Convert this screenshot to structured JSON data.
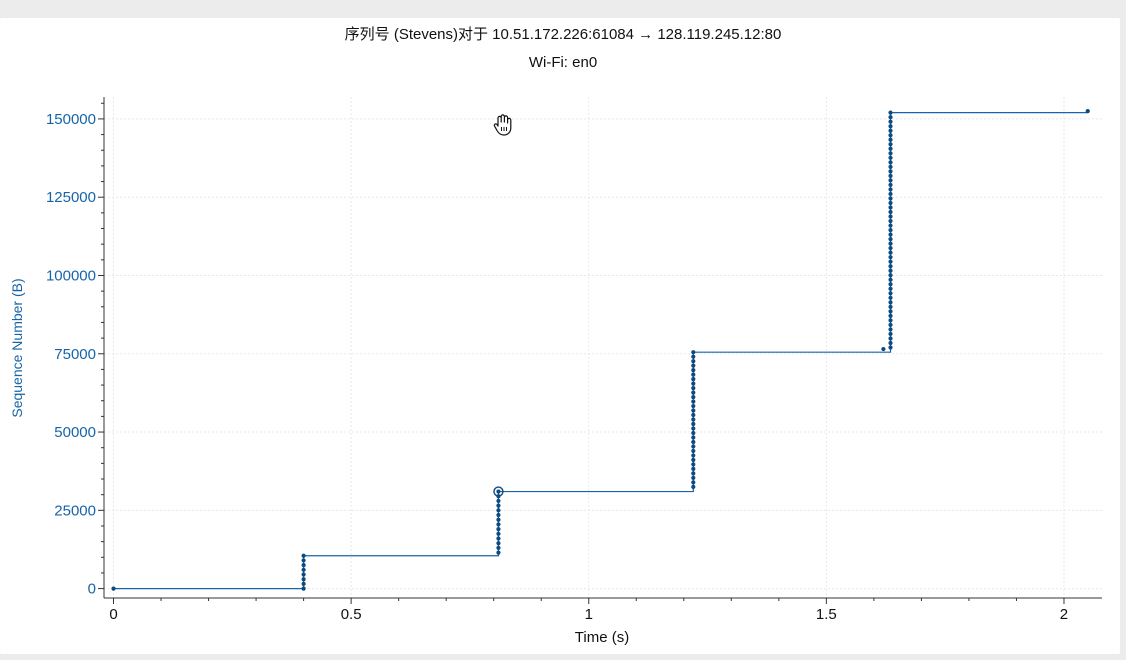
{
  "window": {
    "title": "序列号 (Stevens)对于 10.51.172.226:61084 → 128.119.245.12:80",
    "subtitle": "Wi-Fi: en0"
  },
  "cursor": {
    "icon": "hand-grab-icon"
  },
  "colors": {
    "series": "#1764a8",
    "series_dark": "#0c4a80",
    "axis_label": "#1764a8",
    "grid": "#e8e8e8"
  },
  "chart_data": {
    "type": "scatter",
    "title": "序列号 (Stevens)对于 10.51.172.226:61084 → 128.119.245.12:80",
    "subtitle": "Wi-Fi: en0",
    "xlabel": "Time (s)",
    "ylabel": "Sequence Number (B)",
    "xlim": [
      -0.02,
      2.08
    ],
    "ylim": [
      -3000,
      157000
    ],
    "x_ticks": [
      0,
      0.5,
      1,
      1.5,
      2
    ],
    "x_tick_labels": [
      "0",
      "0.5",
      "1",
      "1.5",
      "2"
    ],
    "y_ticks": [
      0,
      25000,
      50000,
      75000,
      100000,
      125000,
      150000
    ],
    "y_tick_labels": [
      "0",
      "25000",
      "50000",
      "75000",
      "100000",
      "125000",
      "150000"
    ],
    "grid": true,
    "series": [
      {
        "bursts": [
          {
            "x": 0.0,
            "y_start": 0,
            "y_end": 0
          },
          {
            "x": 0.4,
            "y_start": 0,
            "y_end": 10500
          },
          {
            "x": 0.81,
            "y_start": 11500,
            "y_end": 31000
          },
          {
            "x": 1.22,
            "y_start": 32500,
            "y_end": 75500
          },
          {
            "x": 1.62,
            "y_start": 76500,
            "y_end": 76500
          },
          {
            "x": 1.635,
            "y_start": 77000,
            "y_end": 152000
          },
          {
            "x": 2.05,
            "y_start": 152500,
            "y_end": 152500
          }
        ],
        "step_line": [
          [
            0.0,
            0
          ],
          [
            0.4,
            0
          ],
          [
            0.4,
            10500
          ],
          [
            0.81,
            10500
          ],
          [
            0.81,
            31000
          ],
          [
            1.22,
            31000
          ],
          [
            1.22,
            75500
          ],
          [
            1.635,
            75500
          ],
          [
            1.635,
            152000
          ],
          [
            2.05,
            152000
          ]
        ],
        "highlighted_point": {
          "x": 0.81,
          "y": 31000
        }
      }
    ]
  }
}
